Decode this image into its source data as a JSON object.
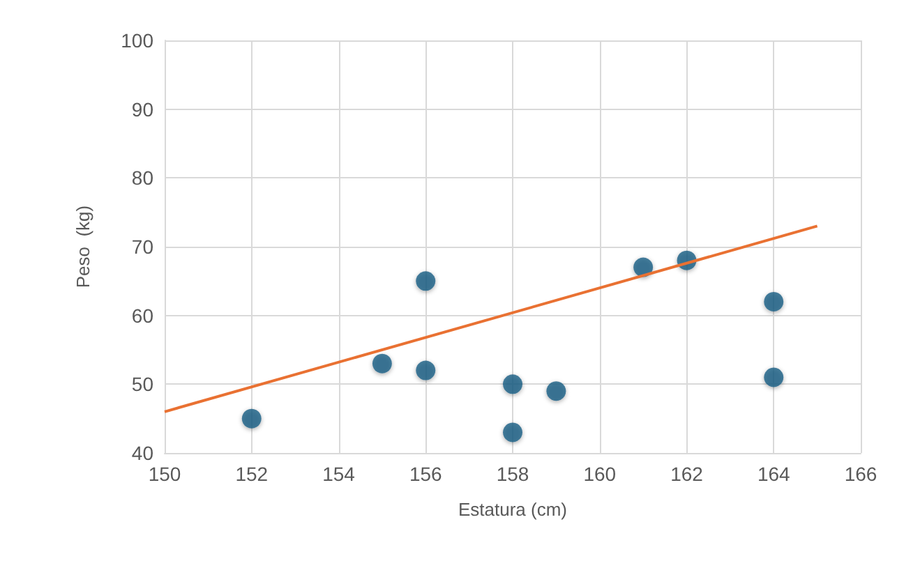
{
  "chart_data": {
    "type": "scatter",
    "xlabel": "Estatura (cm)",
    "ylabel": "Peso  (kg)",
    "series": [
      {
        "marker": "circle",
        "color": "#1b5e84",
        "x": [
          152,
          155,
          156,
          156,
          158,
          158,
          159,
          161,
          162,
          164,
          164
        ],
        "values": [
          45,
          53,
          65,
          52,
          50,
          43,
          49,
          67,
          68,
          62,
          51
        ]
      },
      {
        "type": "line",
        "color": "#e97132",
        "x": [
          150,
          165
        ],
        "values": [
          46,
          73
        ]
      }
    ],
    "xlim": [
      150,
      166
    ],
    "xticks": [
      150,
      152,
      154,
      156,
      158,
      160,
      162,
      164,
      166
    ],
    "ylim": [
      40,
      100
    ],
    "yticks": [
      40,
      50,
      60,
      70,
      80,
      90,
      100
    ],
    "grid": true
  }
}
